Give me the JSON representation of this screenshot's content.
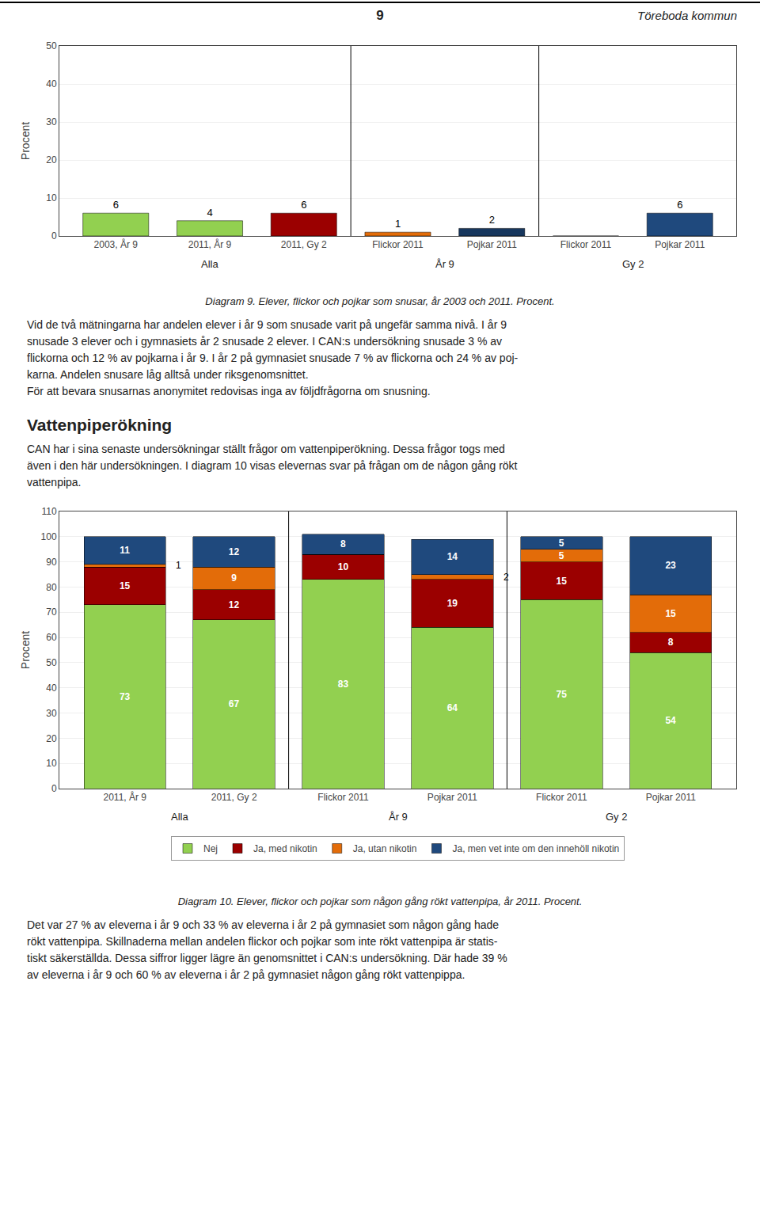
{
  "page_number": "9",
  "page_title": "Töreboda kommun",
  "chart_data": [
    {
      "type": "bar",
      "title": "Diagram 9. Elever, flickor och pojkar som snusar, år 2003 och 2011. Procent.",
      "ylabel": "Procent",
      "categories": [
        "2003, År 9",
        "2011, År 9",
        "2011, Gy 2",
        "Flickor 2011",
        "Pojkar 2011",
        "Flickor 2011",
        "Pojkar 2011"
      ],
      "values": [
        6,
        4,
        6,
        1,
        2,
        0,
        6
      ],
      "value_labels": [
        "6",
        "4",
        "6",
        "1",
        "2",
        null,
        "6"
      ],
      "colors": [
        "#92D050",
        "#92D050",
        "#9B0000",
        "#E36C09",
        "#17375E",
        "#C0C0C0",
        "#1F497D"
      ],
      "ylim": [
        0,
        50
      ],
      "yticks": [
        0,
        10,
        20,
        30,
        40,
        50
      ],
      "grid": true,
      "data_labels": true,
      "annotations": [
        {
          "text": "Alla",
          "x": [
            0,
            2
          ]
        },
        {
          "text": "År 9",
          "x": [
            3,
            4
          ]
        },
        {
          "text": "Gy 2",
          "x": [
            5,
            6
          ]
        }
      ]
    },
    {
      "type": "bar",
      "stacked": true,
      "title": "Diagram 10. Elever, flickor och pojkar som någon gång rökt vattenpipa, år 2011. Procent.",
      "ylabel": "Procent",
      "categories": [
        "2011, År 9",
        "2011, Gy 2",
        "Flickor 2011",
        "Pojkar 2011",
        "Flickor 2011",
        "Pojkar 2011"
      ],
      "series": [
        {
          "name": "Nej",
          "color": "#92D050",
          "values": [
            73,
            67,
            83,
            64,
            75,
            54
          ]
        },
        {
          "name": "Ja, med nikotin",
          "color": "#9B0000",
          "values": [
            15,
            12,
            10,
            19,
            15,
            8
          ]
        },
        {
          "name": "Ja, utan nikotin",
          "color": "#E36C09",
          "values": [
            1,
            9,
            0,
            2,
            5,
            15
          ],
          "value_labels": [
            "1",
            "9",
            null,
            "2",
            "5",
            "15"
          ]
        },
        {
          "name": "Ja, men vet inte om den innehöll nikotin",
          "color": "#1F497D",
          "values": [
            11,
            12,
            8,
            14,
            5,
            23
          ]
        }
      ],
      "ylim": [
        0,
        110
      ],
      "yticks": [
        0,
        10,
        20,
        30,
        40,
        50,
        60,
        70,
        80,
        90,
        100,
        110
      ],
      "grid": true,
      "legend": "bottom",
      "data_labels": true,
      "annotations": [
        {
          "text": "Alla",
          "x": [
            0,
            1
          ]
        },
        {
          "text": "År 9",
          "x": [
            2,
            3
          ]
        },
        {
          "text": "Gy 2",
          "x": [
            4,
            5
          ]
        }
      ]
    }
  ],
  "text1": [
    "Vid de två mätningarna har andelen elever i år 9 som snusade varit på ungefär samma nivå. I år 9",
    "snusade 3 elever och i gymnasiets år 2 snusade 2 elever. I CAN:s undersökning snusade 3 % av",
    "flickorna och 12 % av pojkarna i år 9. I år 2 på gymnasiet snusade 7 % av flickorna och 24 % av poj-",
    "karna. Andelen snusare låg alltså under riksgenomsnittet.",
    "För att bevara snusarnas anonymitet redovisas inga av följdfrågorna om snusning."
  ],
  "section_title": "Vattenpiperökning",
  "text2": [
    "CAN har i sina senaste undersökningar ställt frågor om vattenpiperökning. Dessa frågor togs med",
    "även i den här undersökningen. I diagram 10 visas elevernas svar på frågan om de någon gång rökt",
    "vattenpipa."
  ],
  "text3": [
    "Det var 27 % av eleverna i år 9 och 33 % av eleverna i år 2 på gymnasiet som någon gång hade",
    "rökt vattenpipa. Skillnaderna mellan andelen flickor och pojkar som inte rökt vattenpipa är statis-",
    "tiskt säkerställda. Dessa siffror ligger lägre än genomsnittet i CAN:s undersökning. Där hade 39 %",
    "av eleverna i år 9 och 60 % av eleverna i år 2 på gymnasiet någon gång rökt vattenpippa."
  ]
}
